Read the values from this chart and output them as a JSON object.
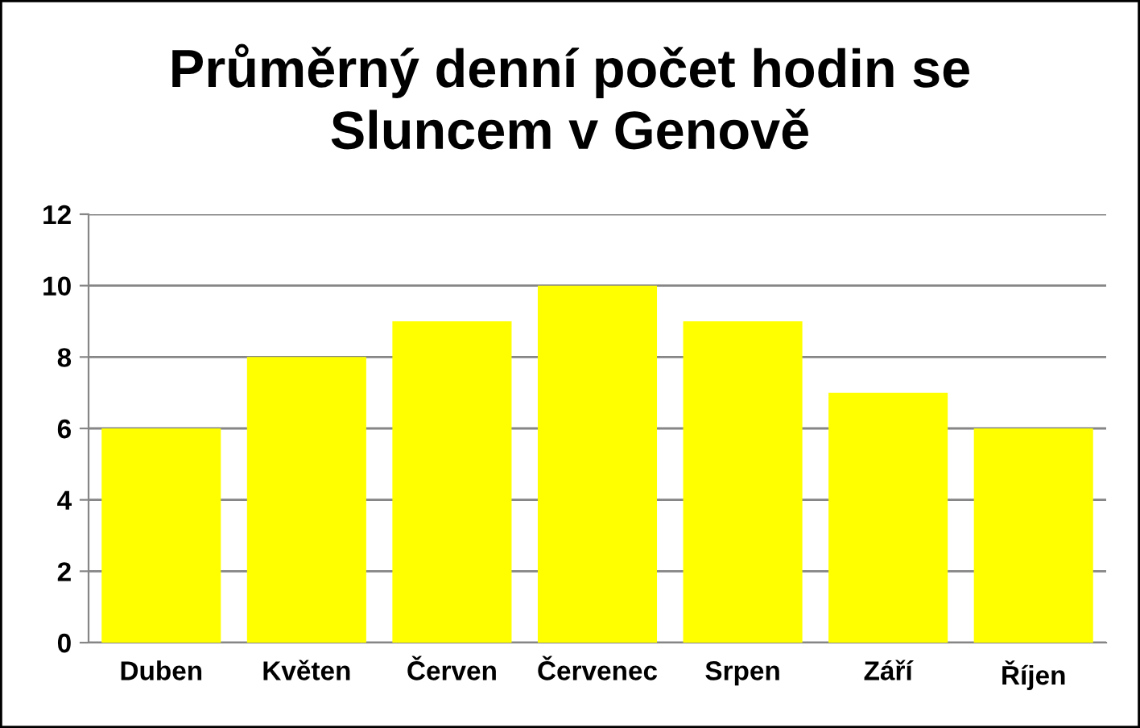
{
  "chart_data": {
    "type": "bar",
    "title": "Průměrný denní počet hodin se\nSluncem v Genově",
    "categories": [
      "Duben",
      "Květen",
      "Červen",
      "Červenec",
      "Srpen",
      "Září",
      "Říjen"
    ],
    "values": [
      6,
      8,
      9,
      10,
      9,
      7,
      6
    ],
    "color": "#ffff00",
    "ylim": [
      0,
      12
    ],
    "yticks": [
      0,
      2,
      4,
      6,
      8,
      10,
      12
    ],
    "grid": "y",
    "legend": false
  }
}
